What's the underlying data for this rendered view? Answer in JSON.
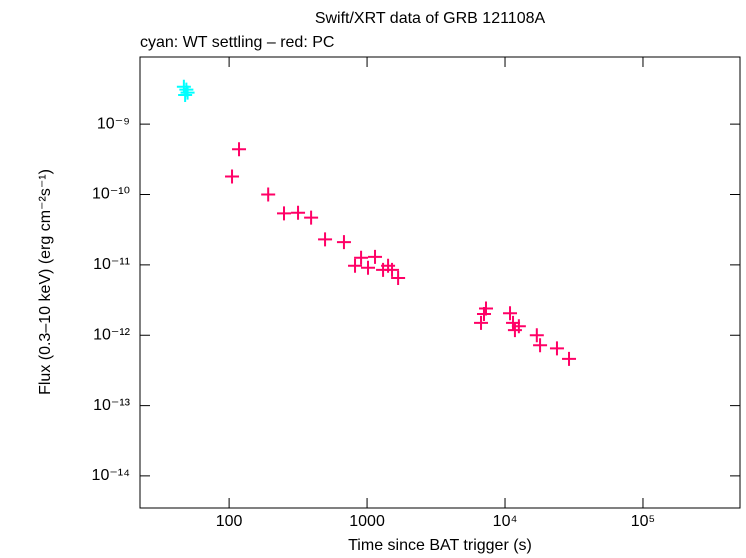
{
  "chart_data": {
    "type": "scatter",
    "title": "Swift/XRT data of GRB 121108A",
    "subtitle": "cyan: WT settling – red: PC",
    "x_label": "Time since BAT trigger (s)",
    "y_label": "Flux (0.3–10 keV) (erg cm⁻²s⁻¹)",
    "xscale": "log",
    "yscale": "log",
    "xlim": [
      22.6,
      505000
    ],
    "ylim": [
      3.5e-15,
      9e-09
    ],
    "xticks": [
      100,
      1000,
      {
        "value": 10000,
        "label": "10⁴"
      },
      {
        "value": 100000,
        "label": "10⁵"
      }
    ],
    "yticks": [
      {
        "value": 1e-14,
        "label": "10⁻¹⁴"
      },
      {
        "value": 1e-13,
        "label": "10⁻¹³"
      },
      {
        "value": 1e-12,
        "label": "10⁻¹²"
      },
      {
        "value": 1e-11,
        "label": "10⁻¹¹"
      },
      {
        "value": 1e-10,
        "label": "10⁻¹⁰"
      },
      {
        "value": 1e-09,
        "label": "10⁻⁹"
      }
    ],
    "series": [
      {
        "name": "WT settling",
        "color": "#00ffff",
        "x": [
          47,
          48,
          49,
          50
        ],
        "values": [
          3.4e-09,
          2.6e-09,
          3.1e-09,
          2.8e-09
        ]
      },
      {
        "name": "PC",
        "color": "#ff0066",
        "x": [
          105,
          118,
          192,
          250,
          316,
          393,
          496,
          680,
          818,
          905,
          1016,
          1142,
          1306,
          1420,
          1517,
          1679,
          6700,
          7040,
          7280,
          10870,
          11430,
          11800,
          12600,
          17000,
          17950,
          23800,
          29100
        ],
        "values": [
          1.8e-10,
          4.4e-10,
          1e-10,
          5.4e-11,
          5.5e-11,
          4.7e-11,
          2.3e-11,
          2.1e-11,
          9.7e-12,
          1.26e-11,
          9.1e-12,
          1.3e-11,
          8.5e-12,
          9.7e-12,
          8.5e-12,
          6.5e-12,
          1.5e-12,
          2e-12,
          2.4e-12,
          2.05e-12,
          1.5e-12,
          1.18e-12,
          1.34e-12,
          1e-12,
          7.2e-13,
          6.5e-13,
          4.6e-13
        ]
      }
    ]
  }
}
